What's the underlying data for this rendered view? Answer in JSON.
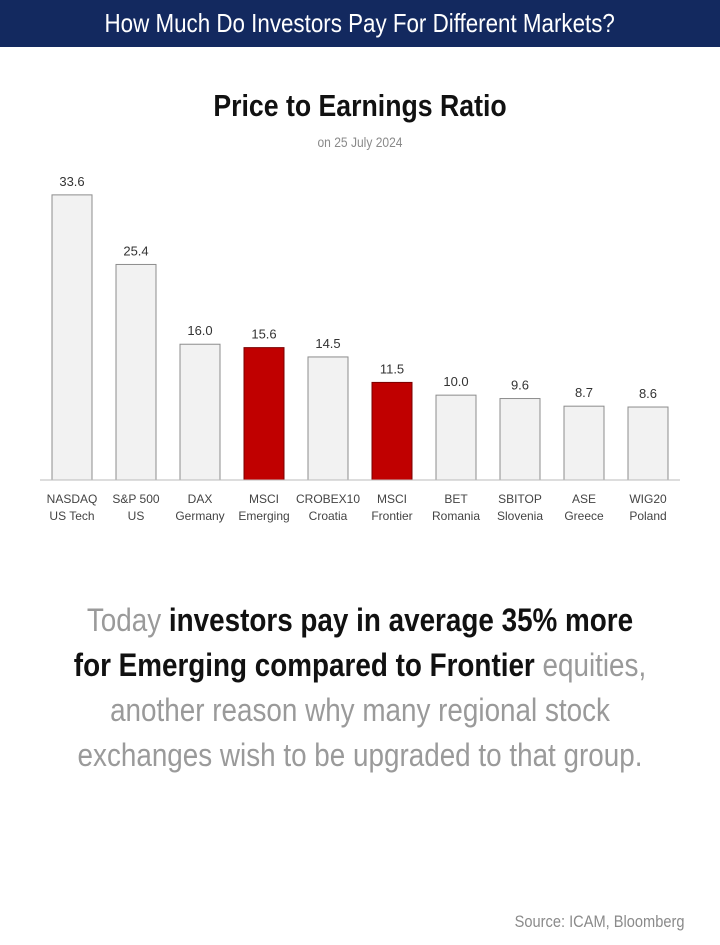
{
  "header": {
    "title": "How Much Do Investors Pay For Different Markets?"
  },
  "colors": {
    "header_bg": "#13295f",
    "bar_default": "#f2f2f2",
    "bar_highlight": "#c00000",
    "bar_border": "#8c8c8c"
  },
  "chart_data": {
    "type": "bar",
    "title": "Price to Earnings Ratio",
    "subtitle": "on 25 July 2024",
    "categories": [
      {
        "line1": "NASDAQ",
        "line2": "US Tech"
      },
      {
        "line1": "S&P 500",
        "line2": "US"
      },
      {
        "line1": "DAX",
        "line2": "Germany"
      },
      {
        "line1": "MSCI",
        "line2": "Emerging"
      },
      {
        "line1": "CROBEX10",
        "line2": "Croatia"
      },
      {
        "line1": "MSCI",
        "line2": "Frontier"
      },
      {
        "line1": "BET",
        "line2": "Romania"
      },
      {
        "line1": "SBITOP",
        "line2": "Slovenia"
      },
      {
        "line1": "ASE",
        "line2": "Greece"
      },
      {
        "line1": "WIG20",
        "line2": "Poland"
      }
    ],
    "values": [
      33.6,
      25.4,
      16.0,
      15.6,
      14.5,
      11.5,
      10.0,
      9.6,
      8.7,
      8.6
    ],
    "value_labels": [
      "33.6",
      "25.4",
      "16.0",
      "15.6",
      "14.5",
      "11.5",
      "10.0",
      "9.6",
      "8.7",
      "8.6"
    ],
    "highlighted": [
      false,
      false,
      false,
      true,
      false,
      true,
      false,
      false,
      false,
      false
    ],
    "ylim": [
      0,
      35
    ],
    "grid": false,
    "legend": "none"
  },
  "body": {
    "part1": "Today ",
    "bold": "investors pay in average 35% more for Emerging compared to Frontier",
    "part2": " equities, another reason why many regional stock exchanges wish to be upgraded to that group."
  },
  "source": "Source:  ICAM, Bloomberg"
}
